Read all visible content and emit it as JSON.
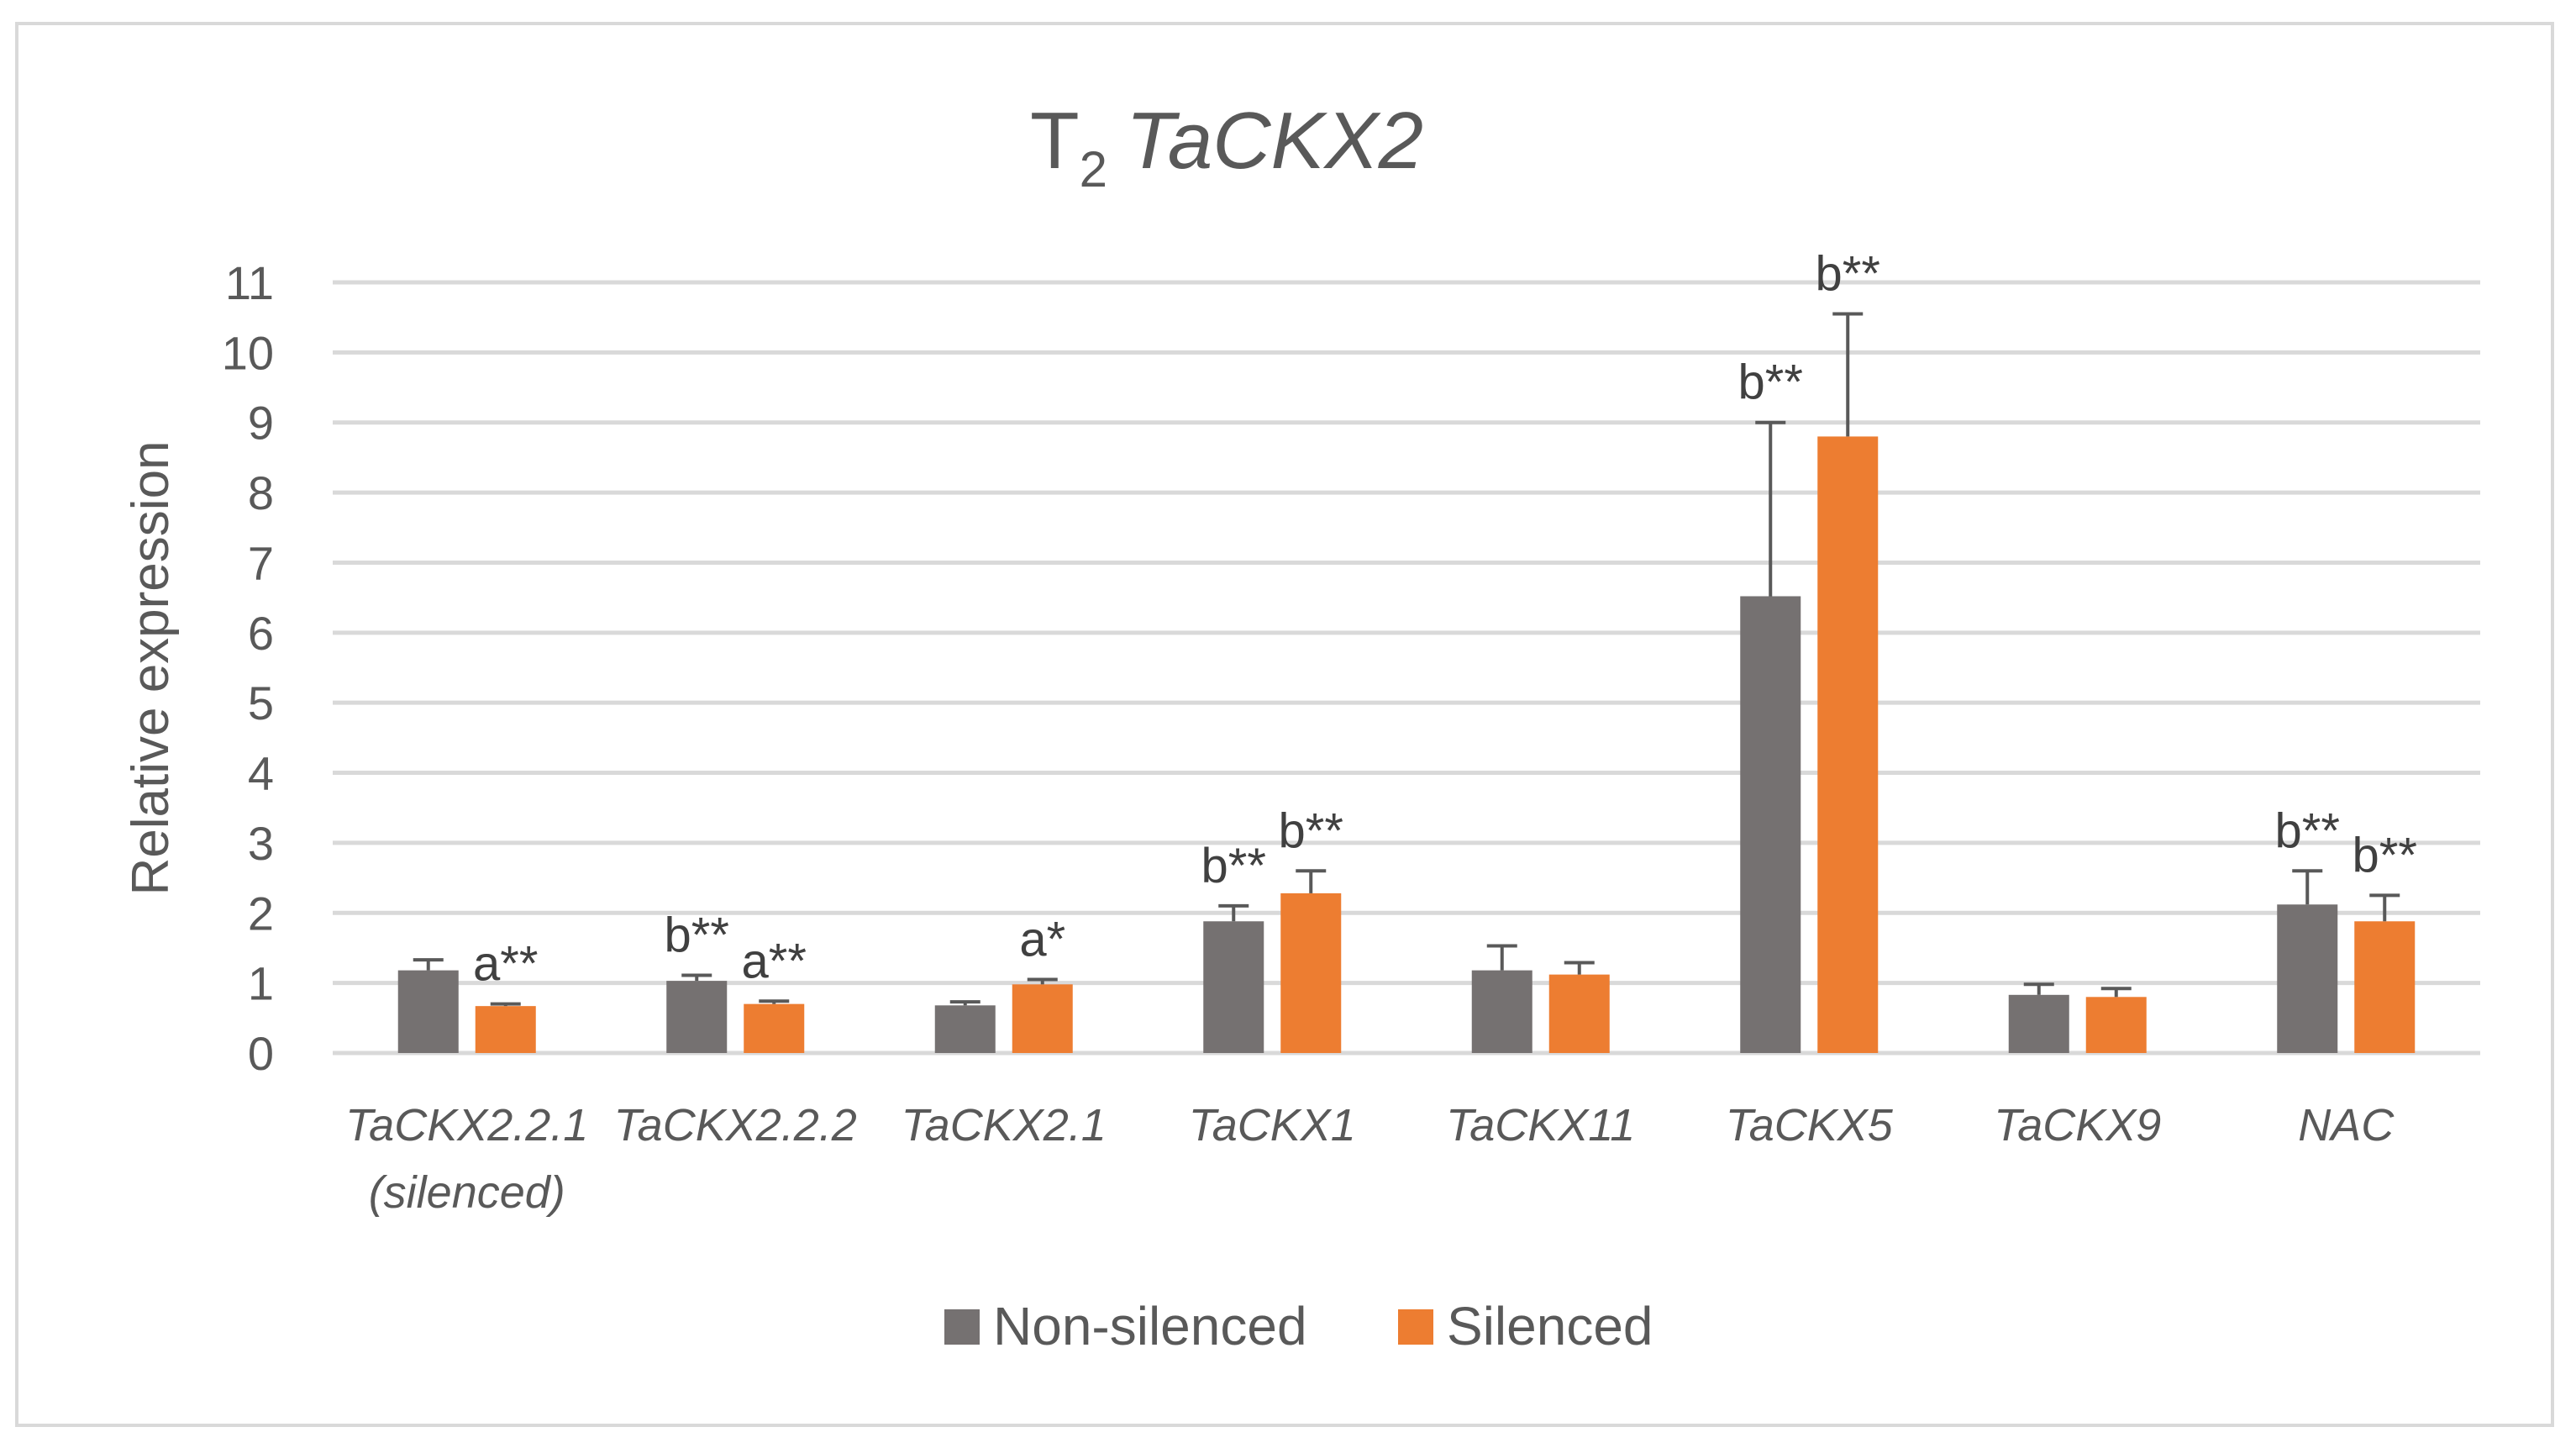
{
  "chart_data": {
    "type": "bar",
    "title_main": "T",
    "title_sub": "2",
    "title_italic": "TaCKX2",
    "ylabel": "Relative expression",
    "ylim": [
      0,
      11
    ],
    "yticks": [
      "0",
      "1",
      "2",
      "3",
      "4",
      "5",
      "6",
      "7",
      "8",
      "9",
      "10",
      "11"
    ],
    "grid": true,
    "legend_position": "bottom",
    "categories": [
      [
        "TaCKX2.2.1",
        "(silenced)"
      ],
      [
        "TaCKX2.2.2"
      ],
      [
        "TaCKX2.1"
      ],
      [
        "TaCKX1"
      ],
      [
        "TaCKX11"
      ],
      [
        "TaCKX5"
      ],
      [
        "TaCKX9"
      ],
      [
        "NAC"
      ]
    ],
    "series": [
      {
        "name": "Non-silenced",
        "color": "#757171",
        "values": [
          1.18,
          1.03,
          0.68,
          1.88,
          1.18,
          6.52,
          0.83,
          2.12
        ],
        "errors": [
          0.15,
          0.08,
          0.05,
          0.22,
          0.35,
          2.48,
          0.15,
          0.48
        ],
        "annotations": [
          "",
          "b**",
          "",
          "b**",
          "",
          "b**",
          "",
          "b**"
        ]
      },
      {
        "name": "Silenced",
        "color": "#ed7d31",
        "values": [
          0.67,
          0.7,
          0.98,
          2.28,
          1.12,
          8.8,
          0.8,
          1.88
        ],
        "errors": [
          0.03,
          0.04,
          0.07,
          0.32,
          0.17,
          1.75,
          0.12,
          0.37
        ],
        "annotations": [
          "a**",
          "a**",
          "a*",
          "b**",
          "",
          "b**",
          "",
          "b**"
        ]
      }
    ]
  },
  "colors": {
    "gridline": "#d9d9d9",
    "text": "#595959",
    "border": "#d9d9d9"
  }
}
